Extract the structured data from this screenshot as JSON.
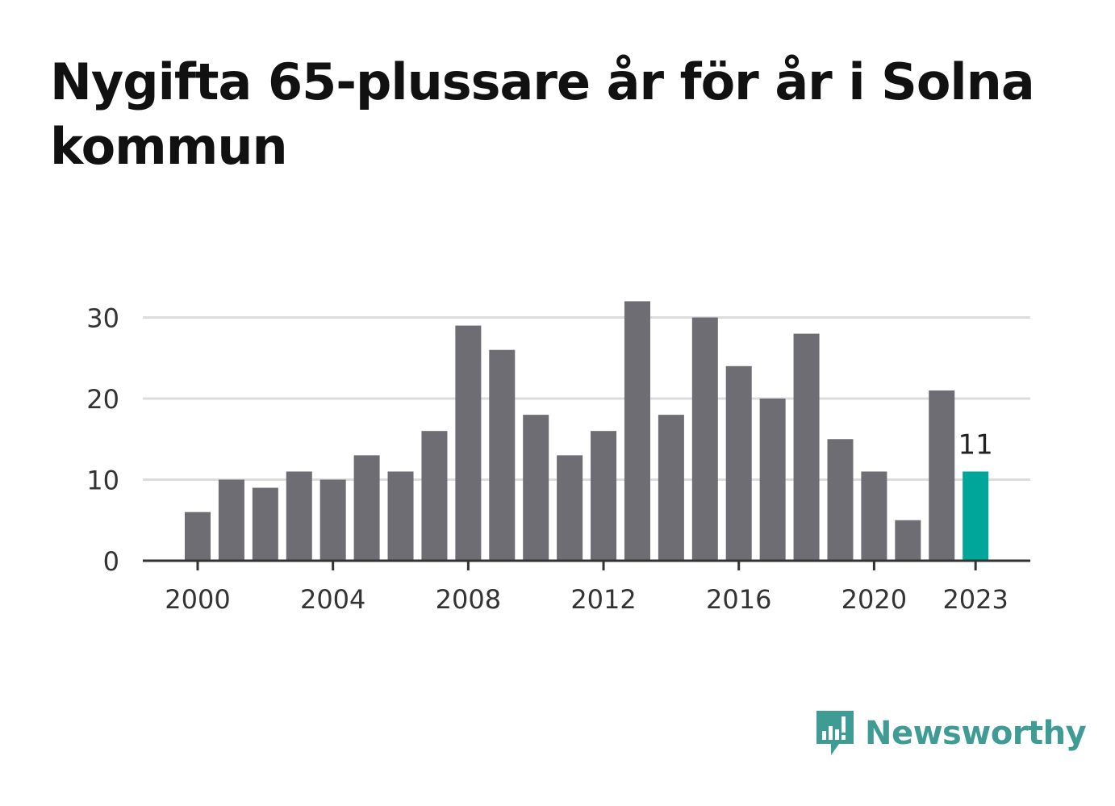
{
  "title": "Nygifta 65-plussare år för år i Solna kommun",
  "brand": {
    "name": "Newsworthy",
    "icon": "newsworthy-logo-icon",
    "color": "#3f9c94"
  },
  "chart_data": {
    "type": "bar",
    "title": "Nygifta 65-plussare år för år i Solna kommun",
    "xlabel": "",
    "ylabel": "",
    "categories": [
      2000,
      2001,
      2002,
      2003,
      2004,
      2005,
      2006,
      2007,
      2008,
      2009,
      2010,
      2011,
      2012,
      2013,
      2014,
      2015,
      2016,
      2017,
      2018,
      2019,
      2020,
      2021,
      2022,
      2023
    ],
    "values": [
      6,
      10,
      9,
      11,
      10,
      13,
      11,
      16,
      29,
      26,
      18,
      13,
      16,
      32,
      18,
      30,
      24,
      20,
      28,
      15,
      11,
      5,
      21,
      11
    ],
    "x_tick_labels": [
      "2000",
      "2004",
      "2008",
      "2012",
      "2016",
      "2020",
      "2023"
    ],
    "y_ticks": [
      0,
      10,
      20,
      30
    ],
    "ylim": [
      0,
      32
    ],
    "grid": true,
    "legend": "none",
    "highlight": {
      "category": 2023,
      "label": "11",
      "color": "#00a69a"
    },
    "bar_color": "#6e6d73"
  }
}
